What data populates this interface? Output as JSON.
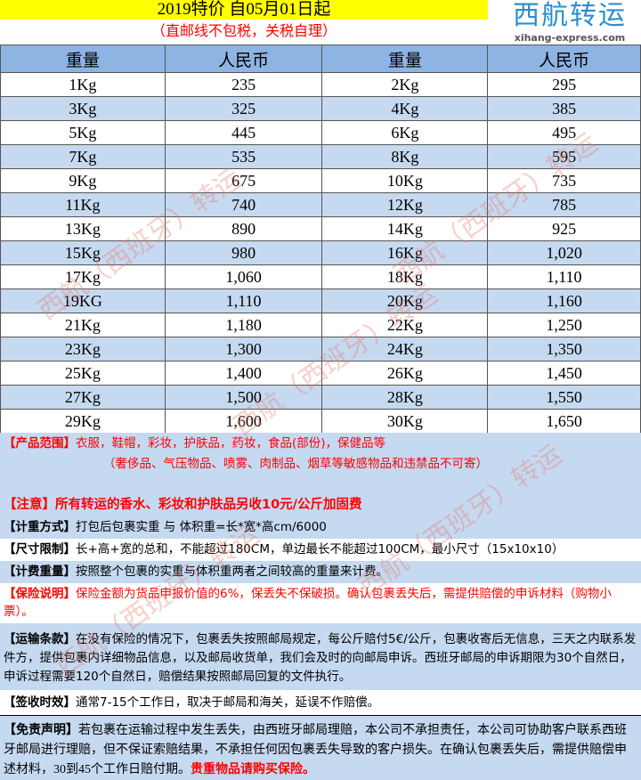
{
  "header": {
    "title": "2019特价  自05月01日起",
    "subtitle": "（直邮线不包税，关税自理）",
    "logo_cn": "西航转运",
    "logo_en": "xihang-express.com"
  },
  "table": {
    "headers": [
      "重量",
      "人民币",
      "重量",
      "人民币"
    ],
    "rows": [
      [
        "1Kg",
        "235",
        "2Kg",
        "295"
      ],
      [
        "3Kg",
        "325",
        "4Kg",
        "385"
      ],
      [
        "5Kg",
        "445",
        "6Kg",
        "495"
      ],
      [
        "7Kg",
        "535",
        "8Kg",
        "595"
      ],
      [
        "9Kg",
        "675",
        "10Kg",
        "735"
      ],
      [
        "11Kg",
        "740",
        "12Kg",
        "785"
      ],
      [
        "13Kg",
        "890",
        "14Kg",
        "925"
      ],
      [
        "15Kg",
        "980",
        "16Kg",
        "1,020"
      ],
      [
        "17Kg",
        "1,060",
        "18Kg",
        "1,110"
      ],
      [
        "19KG",
        "1,110",
        "20Kg",
        "1,160"
      ],
      [
        "21Kg",
        "1,180",
        "22Kg",
        "1,250"
      ],
      [
        "23Kg",
        "1,300",
        "24Kg",
        "1,350"
      ],
      [
        "25Kg",
        "1,400",
        "26Kg",
        "1,450"
      ],
      [
        "27Kg",
        "1,500",
        "28Kg",
        "1,550"
      ],
      [
        "29Kg",
        "1,600",
        "30Kg",
        "1,650"
      ]
    ]
  },
  "sections": {
    "range": {
      "label": "【产品范围】",
      "text": "衣服，鞋帽，彩妆，护肤品，药妆，食品(部份)，保健品等",
      "text2": "（奢侈品、气压物品、喷雾、肉制品、烟草等敏感物品和违禁品不可寄）"
    },
    "notice": {
      "label": "【注意】",
      "text": "所有转运的香水、彩妆和护肤品另收10元/公斤加固费"
    },
    "weight_method": {
      "label": "【计重方式】",
      "text": "打包后包裹实重 与 体积重=长*宽*高cm/6000"
    },
    "size": {
      "label": "【尺寸限制】",
      "text": "长+高+宽的总和，不能超过180CM，单边最长不能超过100CM，最小尺寸（15x10x10）"
    },
    "billing": {
      "label": "【计费重量】",
      "text": "按照整个包裹的实重与体积重两者之间较高的重量来计费。"
    },
    "insurance": {
      "label": "【保险说明】",
      "text": "保险金额为货品申报价值的6%，保丢失不保破损。确认包裹丢失后，需提供赔偿的申诉材料（购物小票）。"
    },
    "transport": {
      "label": "【运输条款】",
      "text": "在没有保险的情况下，包裹丢失按照邮局规定，每公斤赔付5€/公斤，包裹收寄后无信息，三天之内联系发件方，提供包裹内详细物品信息，以及邮局收货单，我们会及时的向邮局申诉。西班牙邮局的申诉期限为30个自然日，申诉过程需要120个自然日，赔偿结果按照邮局回复的文件执行。"
    },
    "delivery": {
      "label": "【签收时效】",
      "text": "通常7-15个工作日，取决于邮局和海关，延误不作赔偿。"
    },
    "disclaimer": {
      "label": "【免责声明】",
      "text": "若包裹在运输过程中发生丢失，由西班牙邮局理赔，本公司不承担责任，本公司可协助客户联系西班牙邮局进行理赔，但不保证索赔结果，不承担任何因包裹丢失导致的客户损失。在确认包裹丢失后，需提供赔偿申述材料，30到45个工作日赔付期。",
      "highlight": "贵重物品请购买保险。"
    }
  },
  "watermark": "西航（西班牙）转运"
}
